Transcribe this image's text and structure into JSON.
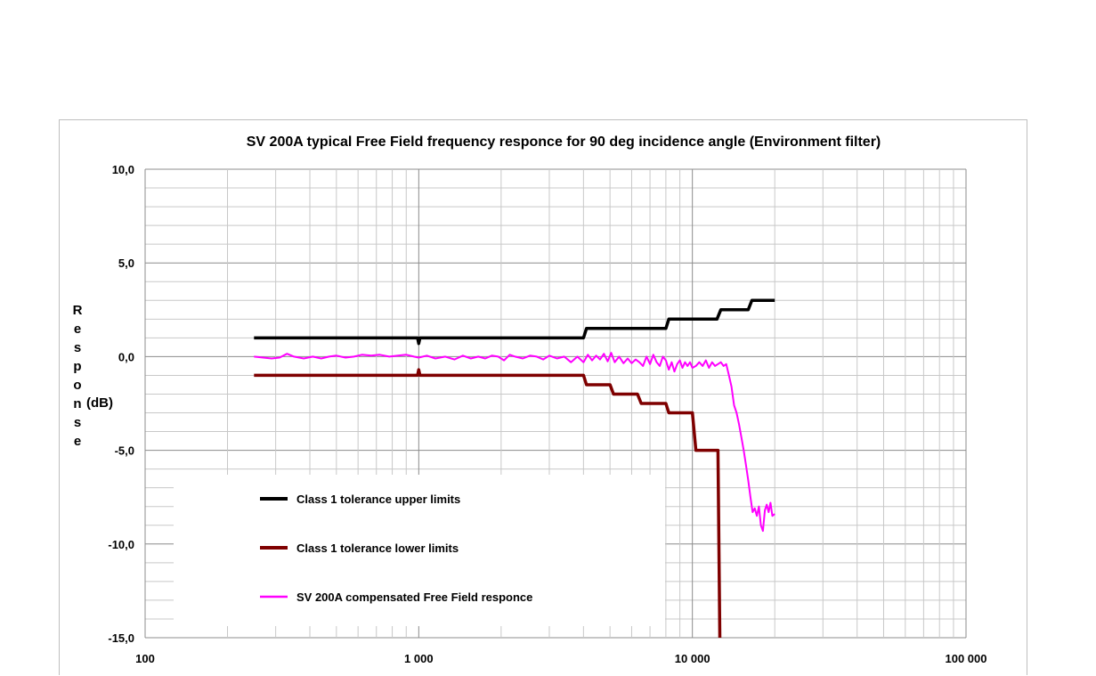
{
  "chart_data": {
    "type": "line",
    "title": "SV 200A typical Free Field frequency responce for 90 deg incidence angle (Environment filter)",
    "ylabel_letters": [
      "R",
      "e",
      "s",
      "p",
      "o",
      "n",
      "s",
      "e"
    ],
    "ylabel_unit": "(dB)",
    "x_scale": "log",
    "xlim": [
      100,
      100000
    ],
    "ylim": [
      -15,
      10
    ],
    "x_tick_labels": [
      "100",
      "1 000",
      "10 000",
      "100 000"
    ],
    "x_ticks": [
      100,
      1000,
      10000,
      100000
    ],
    "y_tick_labels": [
      "10,0",
      "5,0",
      "0,0",
      "-5,0",
      "-10,0",
      "-15,0"
    ],
    "y_ticks": [
      10,
      5,
      0,
      -5,
      -10,
      -15
    ],
    "grid": true,
    "legend_position": "bottom-left",
    "series": [
      {
        "name": "Class 1 tolerance upper limits",
        "color": "#000000",
        "x": [
          250,
          990,
          1000,
          1010,
          4000,
          4100,
          8000,
          8200,
          12300,
          12700,
          16000,
          16500,
          20000
        ],
        "y": [
          1.0,
          1.0,
          0.7,
          1.0,
          1.0,
          1.5,
          1.5,
          2.0,
          2.0,
          2.5,
          2.5,
          3.0,
          3.0
        ]
      },
      {
        "name": "Class 1 tolerance lower limits",
        "color": "#7f0000",
        "x": [
          250,
          990,
          1000,
          1010,
          4000,
          4100,
          5000,
          5150,
          6300,
          6500,
          8000,
          8200,
          10000,
          10300,
          12400,
          12600
        ],
        "y": [
          -1.0,
          -1.0,
          -0.7,
          -1.0,
          -1.0,
          -1.5,
          -1.5,
          -2.0,
          -2.0,
          -2.5,
          -2.5,
          -3.0,
          -3.0,
          -5.0,
          -5.0,
          -15.0
        ]
      },
      {
        "name": "SV 200A compensated Free Field responce",
        "color": "#ff00ff",
        "x": [
          250,
          270,
          290,
          310,
          330,
          350,
          380,
          410,
          440,
          470,
          500,
          540,
          580,
          620,
          670,
          720,
          780,
          840,
          900,
          960,
          1000,
          1070,
          1150,
          1250,
          1350,
          1450,
          1550,
          1650,
          1750,
          1850,
          1950,
          2050,
          2150,
          2250,
          2400,
          2550,
          2700,
          2850,
          3000,
          3200,
          3400,
          3600,
          3800,
          4000,
          4150,
          4300,
          4450,
          4600,
          4750,
          4900,
          5050,
          5200,
          5400,
          5600,
          5800,
          6000,
          6200,
          6400,
          6600,
          6800,
          7000,
          7200,
          7400,
          7600,
          7800,
          8000,
          8200,
          8400,
          8600,
          8800,
          9000,
          9200,
          9400,
          9600,
          9800,
          10000,
          10300,
          10600,
          10900,
          11200,
          11500,
          11800,
          12100,
          12400,
          12700,
          13000,
          13300,
          13600,
          13900,
          14200,
          14500,
          14800,
          15100,
          15400,
          15700,
          16000,
          16300,
          16600,
          16900,
          17200,
          17500,
          17800,
          18100,
          18400,
          18700,
          19000,
          19300,
          19600,
          20000
        ],
        "y": [
          0.0,
          -0.05,
          -0.1,
          -0.05,
          0.15,
          0.0,
          -0.1,
          0.0,
          -0.1,
          0.0,
          0.05,
          -0.05,
          0.0,
          0.1,
          0.05,
          0.1,
          0.0,
          0.05,
          0.1,
          0.0,
          -0.05,
          0.05,
          -0.1,
          0.0,
          -0.15,
          0.05,
          -0.1,
          0.0,
          -0.1,
          0.05,
          0.0,
          -0.2,
          0.1,
          0.0,
          -0.1,
          0.05,
          0.0,
          -0.15,
          0.05,
          -0.1,
          0.0,
          -0.3,
          0.0,
          -0.3,
          0.1,
          -0.2,
          0.05,
          -0.15,
          0.15,
          -0.25,
          0.2,
          -0.3,
          0.0,
          -0.35,
          -0.1,
          -0.35,
          -0.15,
          -0.3,
          -0.5,
          0.0,
          -0.4,
          0.1,
          -0.3,
          -0.5,
          0.0,
          -0.2,
          -0.7,
          -0.3,
          -0.8,
          -0.4,
          -0.2,
          -0.6,
          -0.3,
          -0.5,
          -0.3,
          -0.6,
          -0.5,
          -0.3,
          -0.5,
          -0.2,
          -0.6,
          -0.3,
          -0.5,
          -0.4,
          -0.3,
          -0.5,
          -0.4,
          -1.0,
          -1.6,
          -2.6,
          -3.0,
          -3.6,
          -4.3,
          -5.0,
          -5.8,
          -6.6,
          -7.5,
          -8.3,
          -8.1,
          -8.5,
          -8.0,
          -9.0,
          -9.3,
          -8.2,
          -7.9,
          -8.3,
          -7.8,
          -8.5,
          -8.4
        ]
      }
    ]
  }
}
